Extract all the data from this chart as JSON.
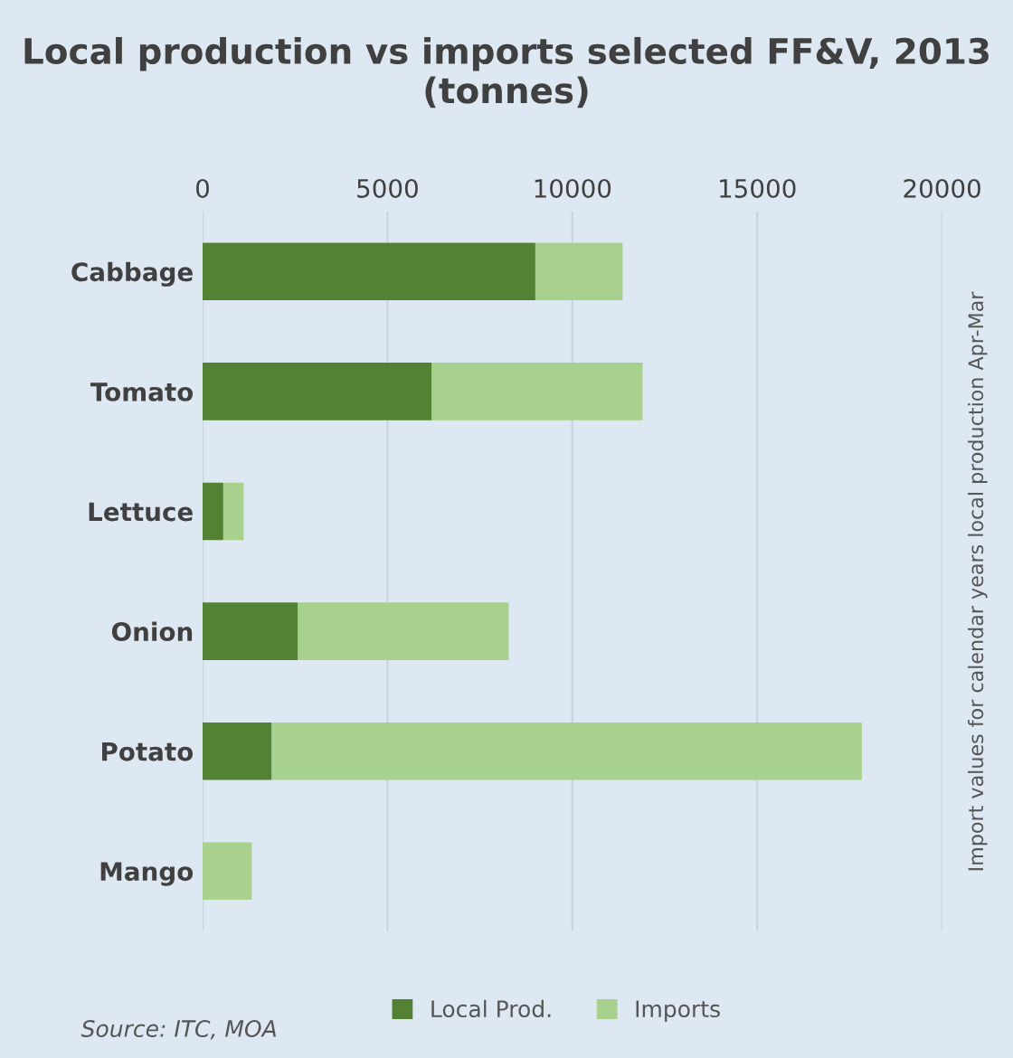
{
  "chart_data": {
    "type": "bar",
    "orientation": "horizontal",
    "stacked": true,
    "title": "Local production vs imports selected FF&V, 2013 (tonnes)",
    "categories": [
      "Cabbage",
      "Tomato",
      "Lettuce",
      "Onion",
      "Potato",
      "Mango"
    ],
    "series": [
      {
        "name": "Local Prod.",
        "color": "#548235",
        "values": [
          9000,
          6200,
          560,
          2580,
          1870,
          0
        ]
      },
      {
        "name": "Imports",
        "color": "#a9d18e",
        "values": [
          2360,
          5700,
          550,
          5700,
          15960,
          1330
        ]
      }
    ],
    "xlim": [
      0,
      20000
    ],
    "xticks": [
      0,
      5000,
      10000,
      15000,
      20000
    ],
    "grid": "x",
    "legend": "bottom",
    "annotations": [
      "Source: ITC, MOA",
      "Import values for calendar years local production Apr-Mar"
    ]
  }
}
